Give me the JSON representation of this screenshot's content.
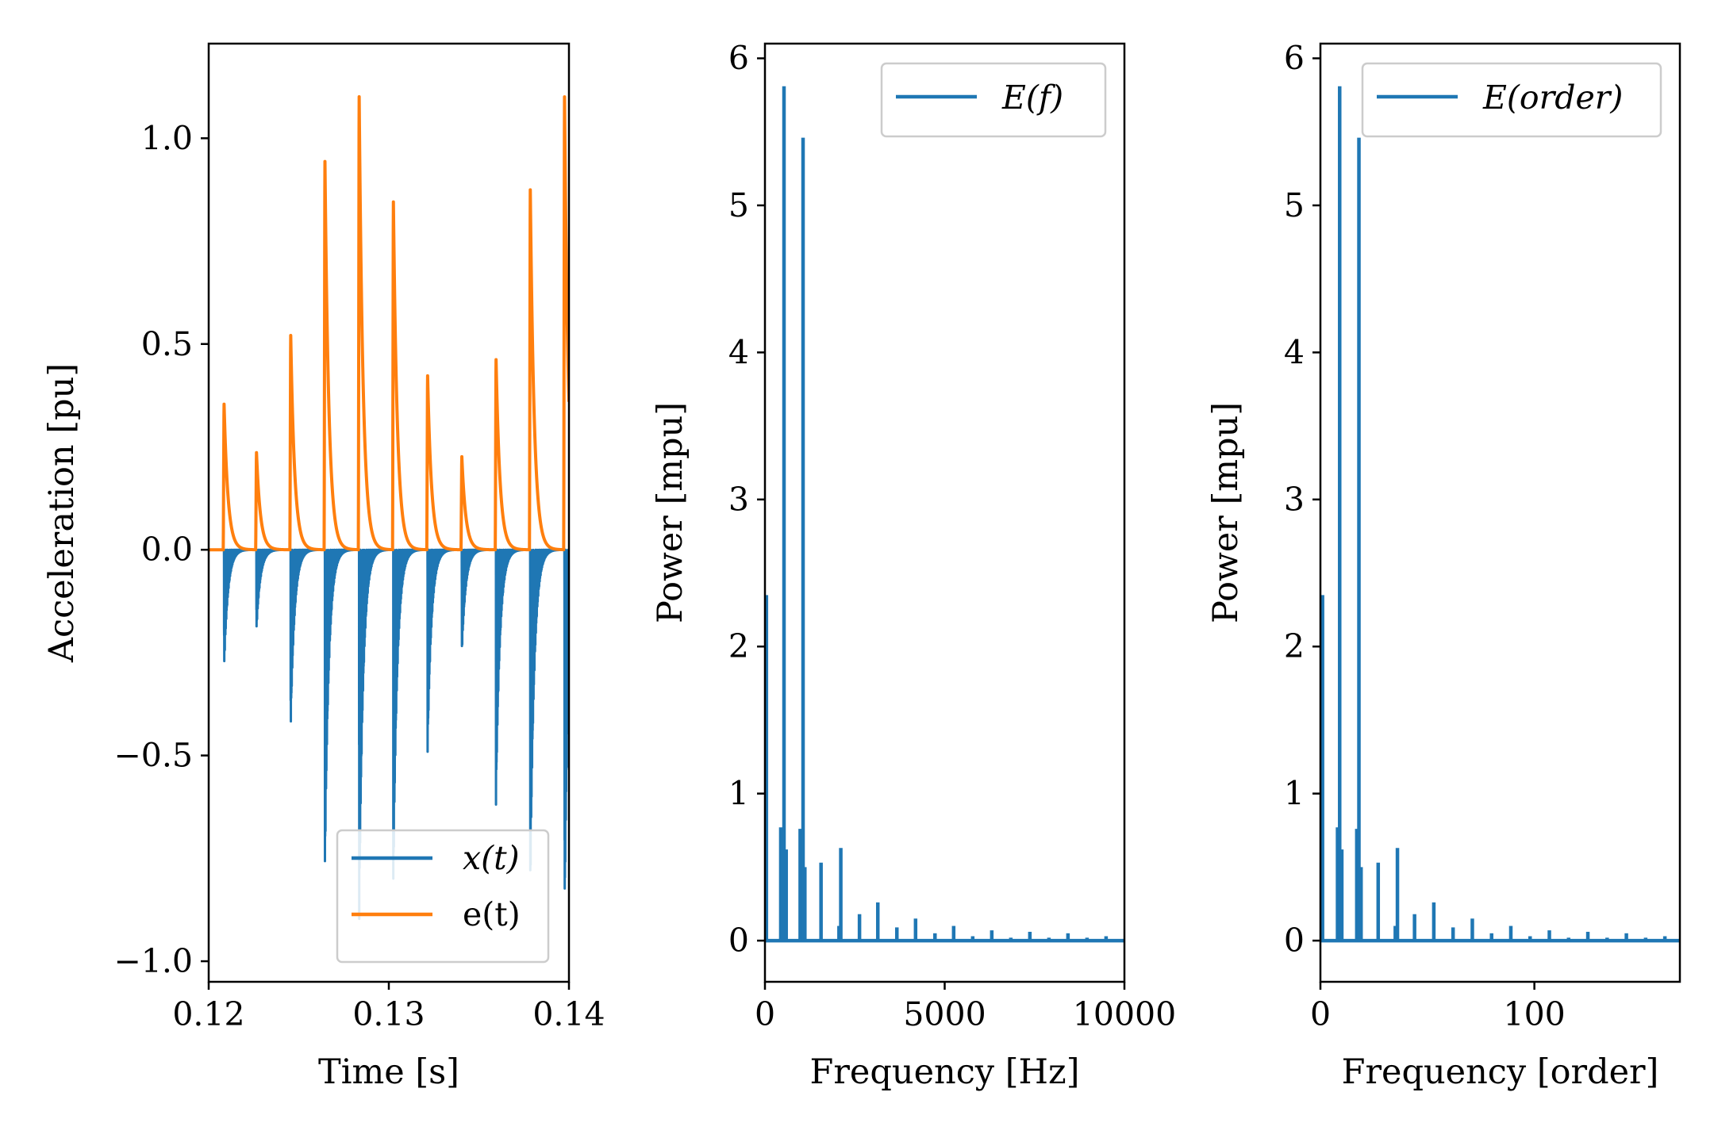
{
  "colors": {
    "blue": "#1f77b4",
    "orange": "#ff7f0e"
  },
  "chart_data": [
    {
      "type": "line",
      "xlabel": "Time [s]",
      "ylabel": "Acceleration [pu]",
      "xlim": [
        0.12,
        0.14
      ],
      "ylim": [
        -1.05,
        1.23
      ],
      "xticks": [
        0.12,
        0.13,
        0.14
      ],
      "xtick_labels": [
        "0.12",
        "0.13",
        "0.14"
      ],
      "yticks": [
        -1.0,
        -0.5,
        0.0,
        0.5,
        1.0
      ],
      "ytick_labels": [
        "−1.0",
        "−0.5",
        "0.0",
        "0.5",
        "1.0"
      ],
      "legend_position": "lower-right",
      "pulse_times": [
        0.12085,
        0.12265,
        0.12455,
        0.12645,
        0.12835,
        0.13025,
        0.13215,
        0.13405,
        0.13595,
        0.13785,
        0.13975
      ],
      "series": [
        {
          "name": "x(t)",
          "color": "#1f77b4",
          "kind": "vibration",
          "peak_min": [
            -0.3,
            -0.2,
            -0.44,
            -0.8,
            -0.93,
            -0.83,
            -0.5,
            -0.26,
            -0.62,
            -0.85,
            -0.94
          ]
        },
        {
          "name": "e(t)",
          "color": "#ff7f0e",
          "kind": "envelope",
          "peak_max": [
            0.36,
            0.24,
            0.53,
            0.96,
            1.12,
            0.86,
            0.43,
            0.23,
            0.47,
            0.89,
            1.12
          ]
        }
      ]
    },
    {
      "type": "line",
      "xlabel": "Frequency [Hz]",
      "ylabel": "Power [mpu]",
      "xlim": [
        0,
        10000
      ],
      "ylim": [
        -0.28,
        6.1
      ],
      "xticks": [
        0,
        5000,
        10000
      ],
      "xtick_labels": [
        "0",
        "5000",
        "10000"
      ],
      "yticks": [
        0,
        1,
        2,
        3,
        4,
        5,
        6
      ],
      "ytick_labels": [
        "0",
        "1",
        "2",
        "3",
        "4",
        "5",
        "6"
      ],
      "legend_position": "upper-right",
      "series": [
        {
          "name": "E(f)",
          "color": "#1f77b4",
          "x": [
            40,
            440,
            530,
            590,
            980,
            1060,
            1110,
            1560,
            2060,
            2110,
            2630,
            3140,
            3670,
            4190,
            4730,
            5250,
            5780,
            6310,
            6840,
            7370,
            7900,
            8430,
            8960,
            9490
          ],
          "y": [
            2.35,
            0.77,
            5.81,
            0.62,
            0.76,
            5.46,
            0.5,
            0.53,
            0.1,
            0.63,
            0.18,
            0.26,
            0.09,
            0.15,
            0.05,
            0.1,
            0.03,
            0.07,
            0.02,
            0.06,
            0.02,
            0.05,
            0.02,
            0.03
          ]
        }
      ]
    },
    {
      "type": "line",
      "xlabel": "Frequency [order]",
      "ylabel": "Power [mpu]",
      "xlim": [
        0,
        168
      ],
      "ylim": [
        -0.28,
        6.1
      ],
      "xticks": [
        0,
        100
      ],
      "xtick_labels": [
        "0",
        "100"
      ],
      "yticks": [
        0,
        1,
        2,
        3,
        4,
        5,
        6
      ],
      "ytick_labels": [
        "0",
        "1",
        "2",
        "3",
        "4",
        "5",
        "6"
      ],
      "legend_position": "upper-right",
      "series": [
        {
          "name": "E(order)",
          "color": "#1f77b4",
          "x": [
            1,
            8,
            9,
            10,
            17,
            18,
            19,
            27,
            35,
            36,
            44,
            53,
            62,
            71,
            80,
            89,
            98,
            107,
            116,
            125,
            134,
            143,
            152,
            161
          ],
          "y": [
            2.35,
            0.77,
            5.81,
            0.62,
            0.76,
            5.46,
            0.5,
            0.53,
            0.1,
            0.63,
            0.18,
            0.26,
            0.09,
            0.15,
            0.05,
            0.1,
            0.03,
            0.07,
            0.02,
            0.06,
            0.02,
            0.05,
            0.02,
            0.03
          ]
        }
      ]
    }
  ]
}
